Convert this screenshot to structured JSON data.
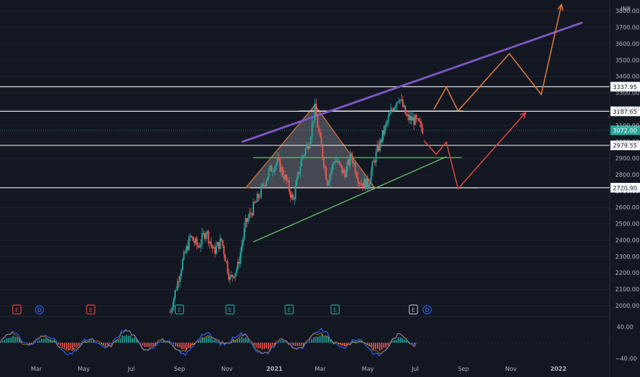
{
  "currency": "INR",
  "colors": {
    "background": "#131722",
    "up": "#26a69a",
    "down": "#ef5350",
    "axis_text": "#b2b5be",
    "price_tag": "#26a69a",
    "purple": "#7e57c2",
    "orange": "#e07a3a",
    "red": "#e0443d",
    "green": "#66bb6a"
  },
  "chart_data": [
    {
      "type": "candlestick",
      "symbol_currency": "INR",
      "x_ticks": [
        "Mar",
        "May",
        "Jul",
        "Sep",
        "Nov",
        "2021",
        "Mar",
        "May",
        "Jul",
        "Sep",
        "Nov",
        "2022"
      ],
      "y_ticks": [
        2000,
        2100,
        2200,
        2300,
        2400,
        2500,
        2600,
        2700,
        2800,
        2900,
        3000,
        3100,
        3200,
        3300,
        3400,
        3500,
        3600,
        3700,
        3800
      ],
      "ylim": [
        1940,
        3840
      ],
      "current_price": "3072.00",
      "levels": [
        {
          "label": "3337.95",
          "value": 3337.95
        },
        {
          "label": "3187.65",
          "value": 3187.65
        },
        {
          "label": "2979.55",
          "value": 2979.55
        },
        {
          "label": "2720.90",
          "value": 2720.9
        }
      ],
      "price_path": [
        [
          "2020-08-20",
          1960
        ],
        [
          "2020-09-05",
          2270
        ],
        [
          "2020-09-15",
          2420
        ],
        [
          "2020-09-25",
          2360
        ],
        [
          "2020-10-05",
          2460
        ],
        [
          "2020-10-15",
          2330
        ],
        [
          "2020-10-25",
          2400
        ],
        [
          "2020-11-05",
          2160
        ],
        [
          "2020-11-15",
          2240
        ],
        [
          "2020-11-25",
          2500
        ],
        [
          "2020-12-05",
          2600
        ],
        [
          "2020-12-15",
          2700
        ],
        [
          "2020-12-25",
          2820
        ],
        [
          "2021-01-05",
          2880
        ],
        [
          "2021-01-15",
          2780
        ],
        [
          "2021-01-25",
          2640
        ],
        [
          "2021-02-05",
          2900
        ],
        [
          "2021-02-15",
          3010
        ],
        [
          "2021-02-22",
          3200
        ],
        [
          "2021-03-01",
          3000
        ],
        [
          "2021-03-10",
          2760
        ],
        [
          "2021-03-20",
          2900
        ],
        [
          "2021-04-01",
          2800
        ],
        [
          "2021-04-10",
          2920
        ],
        [
          "2021-04-20",
          2760
        ],
        [
          "2021-05-01",
          2740
        ],
        [
          "2021-05-10",
          2900
        ],
        [
          "2021-05-20",
          3040
        ],
        [
          "2021-06-01",
          3200
        ],
        [
          "2021-06-10",
          3280
        ],
        [
          "2021-06-20",
          3150
        ],
        [
          "2021-07-01",
          3130
        ],
        [
          "2021-07-12",
          3072
        ]
      ],
      "annotations": {
        "trendlines": [
          {
            "color": "purple",
            "from": [
              "2020-11-20",
              3000
            ],
            "to": [
              "2022-02-01",
              3730
            ]
          },
          {
            "color": "green",
            "from": [
              "2020-12-05",
              2390
            ],
            "to": [
              "2021-08-10",
              2910
            ]
          }
        ],
        "triangle": {
          "apex": [
            "2021-02-22",
            3225
          ],
          "base_left": [
            "2020-11-25",
            2720
          ],
          "base_right": [
            "2021-05-10",
            2720
          ]
        },
        "scenario_up": [
          [
            "2021-07-25",
            3200
          ],
          [
            "2021-08-10",
            3335
          ],
          [
            "2021-08-25",
            3190
          ],
          [
            "2021-10-30",
            3540
          ],
          [
            "2021-12-10",
            3290
          ],
          [
            "2022-01-05",
            3840
          ]
        ],
        "scenario_down": [
          [
            "2021-07-12",
            3010
          ],
          [
            "2021-07-28",
            2925
          ],
          [
            "2021-08-10",
            3000
          ],
          [
            "2021-08-25",
            2715
          ],
          [
            "2021-11-20",
            3180
          ]
        ]
      },
      "event_markers": [
        "E",
        "D",
        "E",
        "E",
        "E",
        "E",
        "E",
        "E",
        "D"
      ]
    },
    {
      "type": "oscillator",
      "y_ticks": [
        "40.00",
        "−40.00"
      ],
      "ylim": [
        -50,
        55
      ]
    }
  ]
}
